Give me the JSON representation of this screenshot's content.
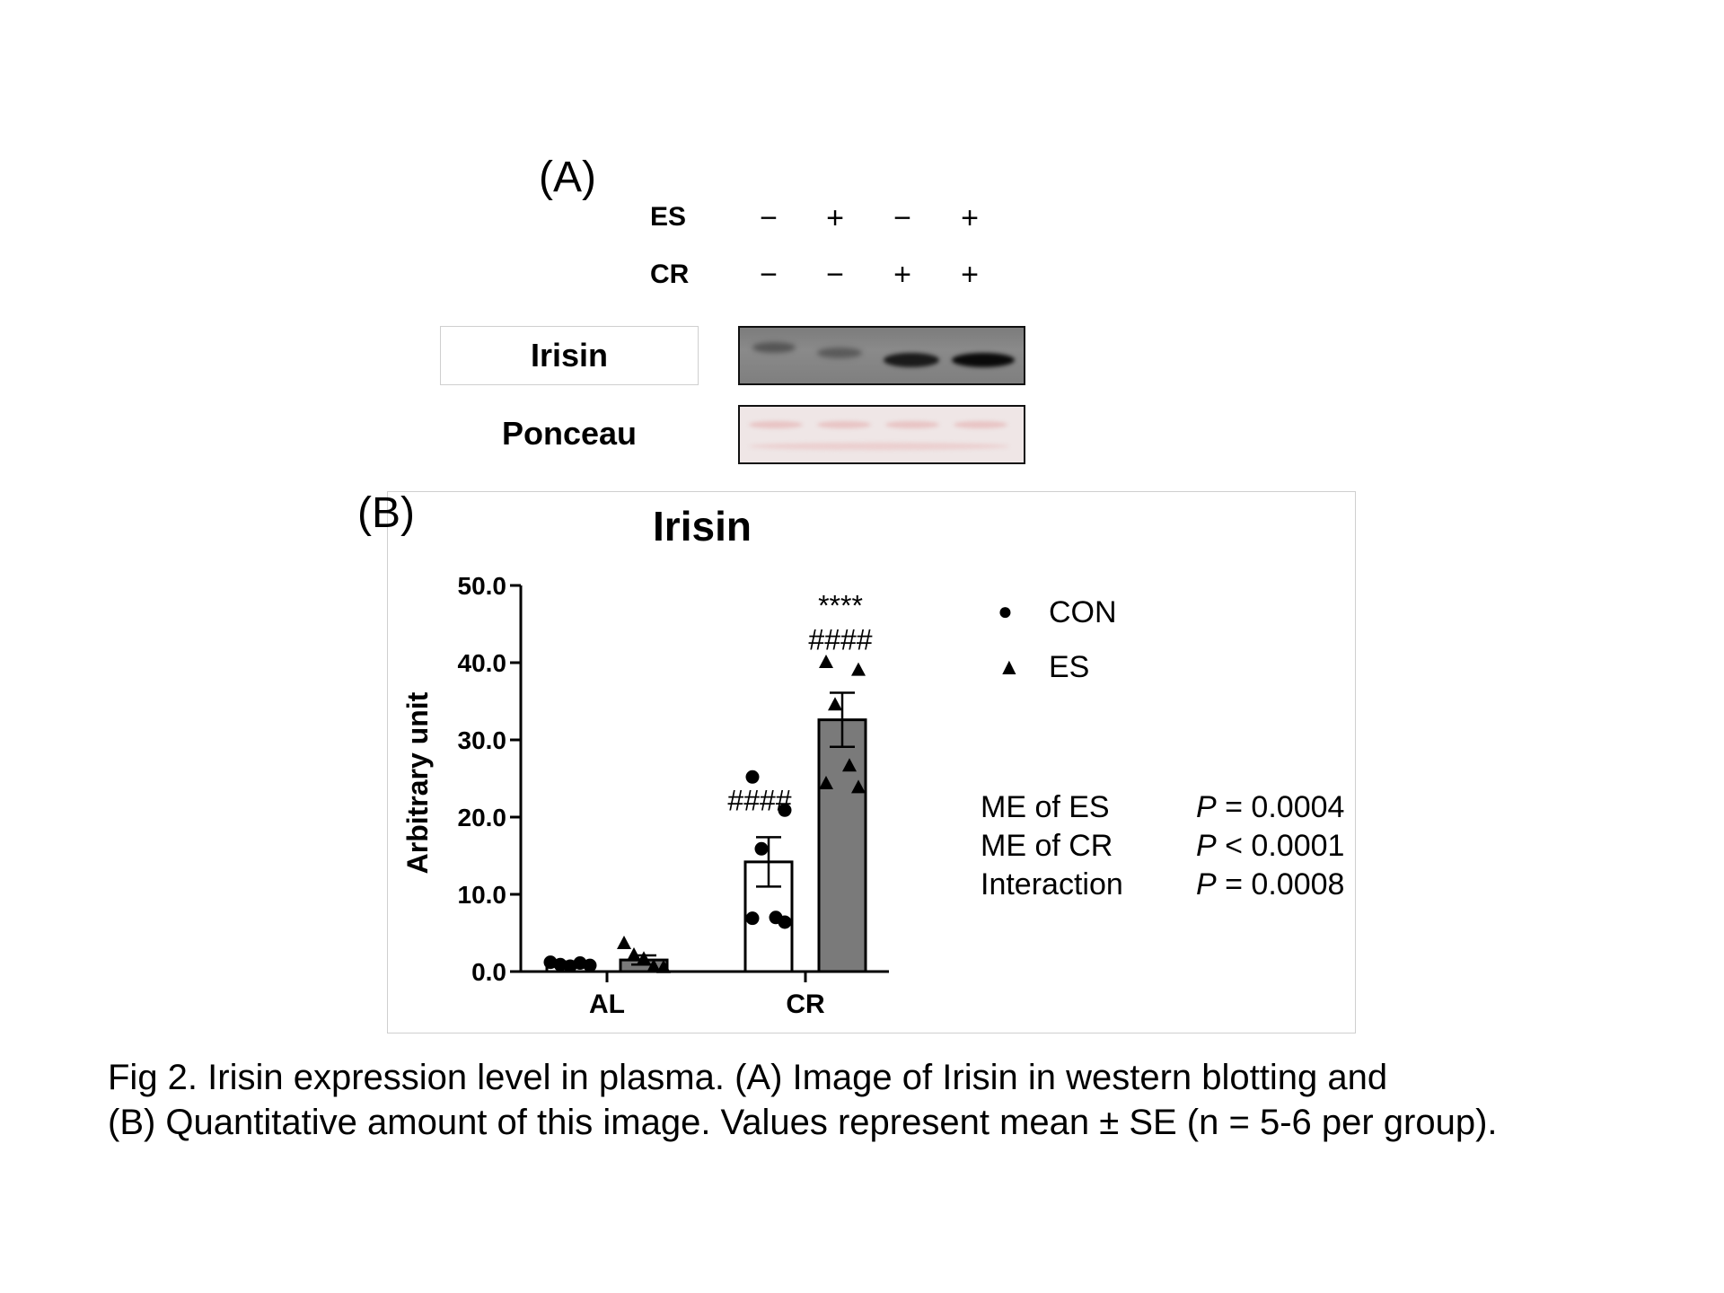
{
  "panel_a": {
    "label": "(A)",
    "conditions": [
      {
        "name": "ES",
        "signs": [
          "−",
          "+",
          "−",
          "+"
        ]
      },
      {
        "name": "CR",
        "signs": [
          "−",
          "−",
          "+",
          "+"
        ]
      }
    ],
    "blots": [
      "Irisin",
      "Ponceau"
    ]
  },
  "panel_b": {
    "label": "(B)",
    "legend": [
      {
        "symbol": "●",
        "name": "CON"
      },
      {
        "symbol": "▲",
        "name": "ES"
      }
    ],
    "stats": [
      {
        "name": "ME of ES",
        "p_var": "P",
        "p_rest": " = 0.0004"
      },
      {
        "name": "ME of CR",
        "p_var": "P",
        "p_rest": " < 0.0001"
      },
      {
        "name": "Interaction",
        "p_var": "P",
        "p_rest": " = 0.0008"
      }
    ],
    "colors": {
      "con_bar": "#ffffff",
      "es_bar": "#7a7a7a"
    }
  },
  "chart_data": {
    "type": "bar",
    "title": "Irisin",
    "xlabel": "",
    "ylabel": "Arbitrary unit",
    "ylim": [
      0,
      50
    ],
    "yticks": [
      "0.0",
      "10.0",
      "20.0",
      "30.0",
      "40.0",
      "50.0"
    ],
    "categories": [
      "AL",
      "CR"
    ],
    "series": [
      {
        "name": "CON",
        "values": [
          1.0,
          14.2
        ],
        "se": [
          0.3,
          3.2
        ],
        "points": [
          [
            1.2,
            0.9,
            0.7,
            1.1,
            0.8
          ],
          [
            25.2,
            20.9,
            15.9,
            7.0,
            6.9,
            6.4
          ]
        ],
        "annotations": [
          "",
          "####"
        ]
      },
      {
        "name": "ES",
        "values": [
          1.5,
          32.6
        ],
        "se": [
          0.6,
          3.5
        ],
        "points": [
          [
            3.6,
            2.1,
            1.6,
            0.6,
            0.5
          ],
          [
            40.0,
            39.0,
            34.5,
            26.6,
            24.3,
            23.8
          ]
        ],
        "annotations": [
          "",
          "****\n####"
        ]
      }
    ],
    "grid": false
  },
  "caption": {
    "line1": "Fig 2. Irisin expression level in plasma. (A) Image of Irisin in western blotting and",
    "line2": "(B) Quantitative amount of this image. Values represent mean ± SE (n = 5-6 per group)."
  }
}
